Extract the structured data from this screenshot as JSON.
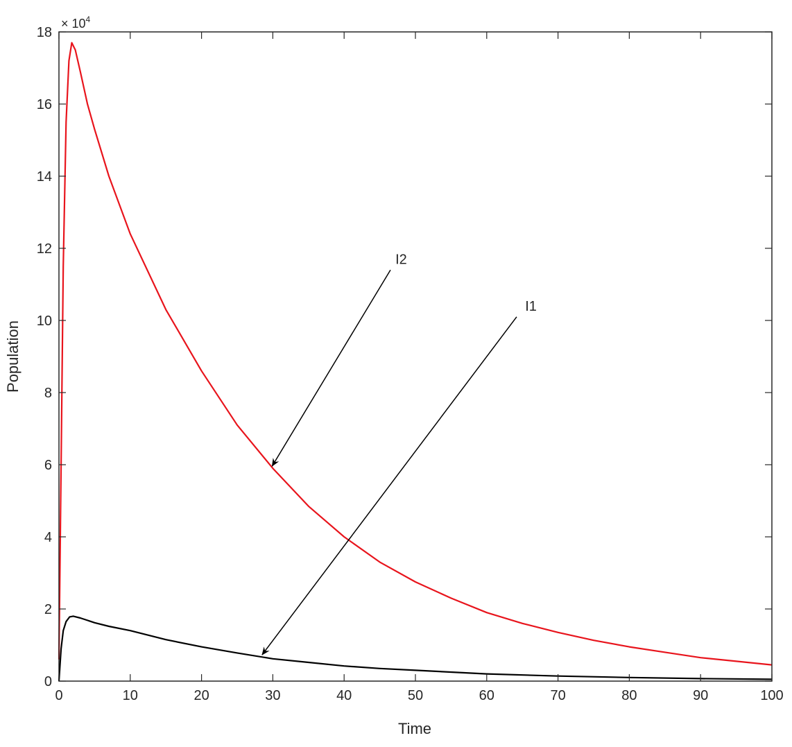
{
  "chart_data": {
    "type": "line",
    "title": "",
    "xlabel": "Time",
    "ylabel": "Population",
    "y_exponent_label": "× 10",
    "y_exponent": "4",
    "xlim": [
      0,
      100
    ],
    "ylim": [
      0,
      18
    ],
    "x_ticks": [
      "0",
      "10",
      "20",
      "30",
      "40",
      "50",
      "60",
      "70",
      "80",
      "90",
      "100"
    ],
    "y_ticks": [
      "0",
      "2",
      "4",
      "6",
      "8",
      "10",
      "12",
      "14",
      "16",
      "18"
    ],
    "grid": false,
    "colors": {
      "I2": "#e8141c",
      "I1": "#000000",
      "axes": "#262626"
    },
    "series": [
      {
        "label": "I2",
        "color": "#e8141c",
        "x": [
          0,
          0.3,
          0.6,
          1,
          1.4,
          1.8,
          2.3,
          3,
          4,
          5,
          7,
          10,
          15,
          20,
          25,
          30,
          35,
          40,
          45,
          50,
          55,
          60,
          65,
          70,
          75,
          80,
          85,
          90,
          95,
          100
        ],
        "y": [
          0.6,
          6,
          11.5,
          15.5,
          17.2,
          17.7,
          17.5,
          16.9,
          16.0,
          15.3,
          14.0,
          12.4,
          10.3,
          8.6,
          7.1,
          5.9,
          4.85,
          4.0,
          3.3,
          2.75,
          2.3,
          1.9,
          1.6,
          1.35,
          1.13,
          0.95,
          0.8,
          0.65,
          0.55,
          0.45
        ]
      },
      {
        "label": "I1",
        "color": "#000000",
        "x": [
          0,
          0.3,
          0.6,
          1,
          1.5,
          2,
          3,
          5,
          7,
          10,
          15,
          20,
          25,
          30,
          35,
          40,
          45,
          50,
          60,
          70,
          80,
          90,
          100
        ],
        "y": [
          0,
          0.9,
          1.4,
          1.65,
          1.78,
          1.8,
          1.75,
          1.62,
          1.52,
          1.4,
          1.15,
          0.95,
          0.78,
          0.62,
          0.52,
          0.42,
          0.35,
          0.3,
          0.2,
          0.14,
          0.1,
          0.07,
          0.05
        ]
      }
    ],
    "annotations": [
      {
        "text": "I2",
        "text_at": [
          48,
          11.7
        ],
        "arrow_from": [
          46.5,
          11.4
        ],
        "arrow_to": [
          29.9,
          5.96
        ]
      },
      {
        "text": "I1",
        "text_at": [
          66.2,
          10.4
        ],
        "arrow_from": [
          64.2,
          10.1
        ],
        "arrow_to": [
          28.5,
          0.73
        ]
      }
    ]
  }
}
